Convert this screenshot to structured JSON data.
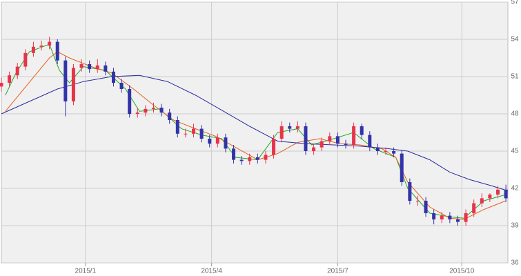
{
  "chart_data": {
    "type": "candlestick",
    "x": [
      0,
      4,
      8,
      12,
      16,
      20,
      24,
      28,
      32,
      36,
      40,
      44,
      48,
      52,
      56,
      60,
      64,
      68,
      72,
      76,
      80,
      84,
      88,
      92,
      96,
      100,
      104,
      108,
      112,
      116,
      120,
      124,
      128,
      132,
      136,
      140,
      144,
      148,
      152,
      156,
      160,
      164,
      168,
      172,
      176,
      180,
      184,
      188,
      192,
      196,
      200,
      204,
      208,
      212,
      216,
      220,
      224,
      228,
      232,
      236,
      240,
      244,
      248,
      252
    ],
    "open": [
      50.2,
      50.5,
      51.1,
      51.8,
      52.9,
      53.4,
      53.5,
      53.8,
      52.3,
      49.0,
      51.7,
      52.0,
      51.6,
      51.9,
      51.4,
      50.5,
      50.0,
      48.0,
      48.1,
      48.4,
      48.5,
      48.1,
      47.5,
      46.4,
      46.4,
      46.8,
      46.0,
      45.6,
      46.1,
      45.2,
      44.3,
      44.2,
      44.5,
      44.3,
      44.7,
      46.0,
      47.0,
      46.8,
      47.0,
      45.0,
      45.3,
      45.8,
      46.2,
      45.6,
      45.5,
      47.0,
      46.3,
      45.3,
      45.0,
      45.0,
      44.8,
      42.5,
      41.0,
      41.0,
      40.0,
      39.5,
      39.8,
      39.5,
      39.3,
      40.0,
      40.8,
      41.2,
      41.5,
      41.9
    ],
    "close": [
      50.5,
      51.1,
      51.8,
      52.9,
      53.4,
      53.5,
      53.8,
      52.3,
      49.0,
      51.7,
      52.0,
      51.6,
      51.9,
      51.4,
      50.5,
      50.0,
      48.0,
      48.1,
      48.4,
      48.5,
      48.1,
      47.5,
      46.4,
      46.4,
      46.8,
      46.0,
      45.6,
      46.1,
      45.2,
      44.3,
      44.2,
      44.5,
      44.3,
      44.7,
      46.0,
      47.0,
      46.8,
      47.0,
      45.0,
      45.3,
      45.8,
      46.2,
      45.6,
      45.5,
      47.0,
      46.3,
      45.3,
      45.0,
      45.0,
      44.8,
      42.5,
      41.0,
      41.0,
      40.0,
      39.5,
      39.8,
      39.5,
      39.3,
      40.0,
      40.8,
      41.2,
      41.5,
      41.9,
      41.2
    ],
    "high": [
      50.9,
      51.4,
      52.1,
      53.2,
      53.8,
      53.9,
      54.2,
      54.0,
      52.6,
      52.0,
      52.4,
      52.3,
      52.4,
      52.2,
      51.7,
      50.8,
      50.3,
      48.5,
      48.7,
      48.9,
      48.8,
      48.4,
      47.8,
      46.8,
      47.2,
      47.1,
      46.3,
      46.4,
      46.4,
      45.5,
      44.6,
      44.8,
      44.8,
      45.0,
      46.3,
      47.4,
      47.3,
      47.4,
      47.3,
      45.6,
      46.1,
      46.5,
      46.5,
      45.9,
      47.3,
      47.2,
      46.6,
      45.6,
      45.3,
      45.3,
      45.1,
      42.8,
      41.4,
      41.3,
      40.3,
      40.1,
      40.1,
      39.8,
      40.3,
      41.1,
      41.6,
      41.6,
      42.2,
      42.3
    ],
    "low": [
      49.8,
      50.2,
      50.8,
      51.5,
      52.6,
      53.1,
      53.2,
      52.0,
      47.8,
      48.7,
      51.4,
      51.3,
      51.3,
      51.1,
      50.2,
      49.7,
      47.7,
      47.7,
      47.8,
      48.1,
      47.8,
      47.2,
      46.1,
      46.1,
      46.1,
      45.7,
      45.3,
      45.3,
      44.9,
      44.0,
      43.9,
      43.9,
      44.0,
      44.0,
      44.4,
      45.7,
      46.5,
      46.5,
      44.7,
      44.7,
      45.0,
      45.5,
      45.3,
      45.2,
      45.2,
      46.0,
      45.0,
      44.7,
      44.7,
      44.5,
      42.2,
      40.7,
      40.6,
      39.7,
      39.1,
      39.2,
      39.2,
      39.0,
      39.0,
      39.7,
      40.5,
      40.9,
      41.2,
      40.9
    ],
    "up_color": "#e8334a",
    "down_color": "#3333aa",
    "lines": [
      {
        "color": "#22aa22",
        "x": [
          2,
          7,
          14,
          24,
          29,
          34,
          41,
          52,
          62,
          69,
          79,
          90,
          100,
          110,
          117,
          128,
          138,
          148,
          155,
          166,
          176,
          186,
          197,
          203,
          214,
          224,
          231,
          241,
          252
        ],
        "values": [
          49.5,
          51.2,
          53.0,
          53.6,
          51.5,
          50.5,
          51.8,
          51.5,
          50.0,
          48.2,
          48.4,
          46.8,
          46.3,
          46.0,
          44.5,
          44.3,
          46.5,
          46.8,
          45.5,
          46.0,
          46.5,
          45.2,
          44.5,
          42.0,
          40.0,
          39.7,
          39.6,
          41.0,
          41.5
        ]
      },
      {
        "color": "#e8601c",
        "x": [
          2,
          24,
          28,
          34,
          45,
          55,
          66,
          76,
          86,
          97,
          107,
          117,
          128,
          138,
          148,
          159,
          169,
          179,
          190,
          197,
          203,
          214,
          224,
          231,
          241,
          252
        ],
        "values": [
          48.2,
          52.5,
          53.0,
          52.5,
          51.8,
          51.3,
          50.0,
          48.7,
          47.5,
          46.8,
          46.2,
          45.3,
          44.3,
          44.8,
          45.7,
          46.0,
          45.6,
          45.5,
          45.2,
          44.5,
          42.5,
          40.5,
          39.6,
          39.5,
          40.3,
          41.0
        ]
      },
      {
        "color": "#2a2aa0",
        "x": [
          0,
          14,
          28,
          41,
          55,
          69,
          83,
          97,
          110,
          124,
          138,
          152,
          166,
          179,
          193,
          203,
          214,
          224,
          234,
          245,
          253
        ],
        "values": [
          48.0,
          49.0,
          50.0,
          50.6,
          51.0,
          51.1,
          50.6,
          49.5,
          48.3,
          47.0,
          45.8,
          45.6,
          45.5,
          45.4,
          45.2,
          45.0,
          44.3,
          43.3,
          42.7,
          42.2,
          41.8
        ]
      }
    ],
    "xlim": [
      0,
      253
    ],
    "xticks": [
      {
        "value": 42,
        "label": "2015/1"
      },
      {
        "value": 105,
        "label": "2015/4"
      },
      {
        "value": 168,
        "label": "2015/7"
      },
      {
        "value": 230,
        "label": "2015/10"
      }
    ],
    "ylim": [
      36,
      57
    ],
    "yticks": [
      36,
      39,
      42,
      45,
      48,
      51,
      54,
      57
    ],
    "grid": true
  }
}
